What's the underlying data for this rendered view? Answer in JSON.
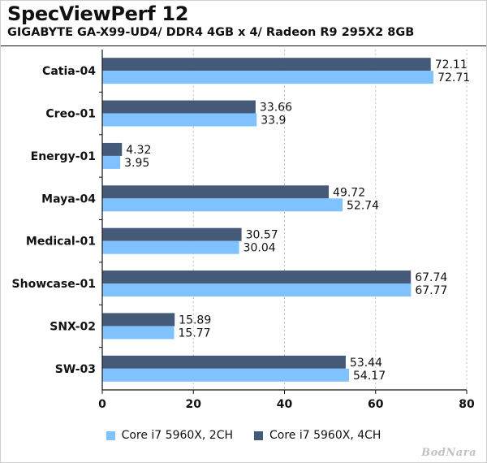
{
  "colors": {
    "series_2ch": "#80c2ff",
    "series_4ch": "#445a78",
    "text": "#111111",
    "grid": "#bdbdbd",
    "axis": "#111111"
  },
  "watermark": "BodNara",
  "chart_data": {
    "type": "bar",
    "orientation": "horizontal",
    "title": "SpecViewPerf 12",
    "subtitle": "GIGABYTE GA-X99-UD4/ DDR4 4GB x 4/ Radeon R9 295X2 8GB",
    "xlabel": "",
    "ylabel": "",
    "categories": [
      "Catia-04",
      "Creo-01",
      "Energy-01",
      "Maya-04",
      "Medical-01",
      "Showcase-01",
      "SNX-02",
      "SW-03"
    ],
    "series": [
      {
        "name": "Core i7 5960X, 4CH",
        "color": "#445a78",
        "values": [
          72.11,
          33.66,
          4.32,
          49.72,
          30.57,
          67.74,
          15.89,
          53.44
        ],
        "labels": [
          "72.11",
          "33.66",
          "4.32",
          "49.72",
          "30.57",
          "67.74",
          "15.89",
          "53.44"
        ]
      },
      {
        "name": "Core i7 5960X, 2CH",
        "color": "#80c2ff",
        "values": [
          72.71,
          33.9,
          3.95,
          52.74,
          30.04,
          67.77,
          15.77,
          54.17
        ],
        "labels": [
          "72.71",
          "33.9",
          "3.95",
          "52.74",
          "30.04",
          "67.77",
          "15.77",
          "54.17"
        ]
      }
    ],
    "xlim": [
      0,
      80
    ],
    "xticks": [
      0,
      20,
      40,
      60,
      80
    ],
    "xtick_labels": [
      "0",
      "20",
      "40",
      "60",
      "80"
    ],
    "grid": "vertical dotted",
    "legend": {
      "placement": "bottom",
      "entries": [
        "Core i7 5960X, 2CH",
        "Core i7 5960X, 4CH"
      ]
    }
  }
}
